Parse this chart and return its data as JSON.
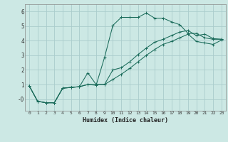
{
  "xlabel": "Humidex (Indice chaleur)",
  "bg_color": "#cce8e4",
  "grid_color": "#aacccc",
  "line_color": "#1a6b5a",
  "xlim": [
    -0.5,
    23.5
  ],
  "ylim": [
    -0.8,
    6.5
  ],
  "xticks": [
    0,
    1,
    2,
    3,
    4,
    5,
    6,
    7,
    8,
    9,
    10,
    11,
    12,
    13,
    14,
    15,
    16,
    17,
    18,
    19,
    20,
    21,
    22,
    23
  ],
  "yticks": [
    0,
    1,
    2,
    3,
    4,
    5,
    6
  ],
  "ytick_labels": [
    "-0",
    "1",
    "2",
    "3",
    "4",
    "5",
    "6"
  ],
  "x": [
    0,
    1,
    2,
    3,
    4,
    5,
    6,
    7,
    8,
    9,
    10,
    11,
    12,
    13,
    14,
    15,
    16,
    17,
    18,
    19,
    20,
    21,
    22,
    23
  ],
  "s1": [
    0.9,
    -0.15,
    -0.25,
    -0.25,
    0.75,
    0.8,
    0.85,
    1.0,
    0.95,
    2.85,
    5.05,
    5.6,
    5.6,
    5.6,
    5.9,
    5.55,
    5.55,
    5.3,
    5.1,
    4.5,
    4.5,
    4.2,
    4.1,
    4.1
  ],
  "s2": [
    0.9,
    -0.15,
    -0.25,
    -0.25,
    0.75,
    0.8,
    0.85,
    1.8,
    1.0,
    1.0,
    2.0,
    2.15,
    2.55,
    3.05,
    3.5,
    3.9,
    4.1,
    4.35,
    4.6,
    4.7,
    4.35,
    4.45,
    4.15,
    4.1
  ],
  "s3": [
    0.9,
    -0.15,
    -0.25,
    -0.25,
    0.75,
    0.8,
    0.85,
    1.0,
    1.0,
    1.0,
    1.35,
    1.7,
    2.1,
    2.55,
    3.0,
    3.4,
    3.75,
    3.95,
    4.2,
    4.45,
    3.95,
    3.85,
    3.75,
    4.05
  ]
}
